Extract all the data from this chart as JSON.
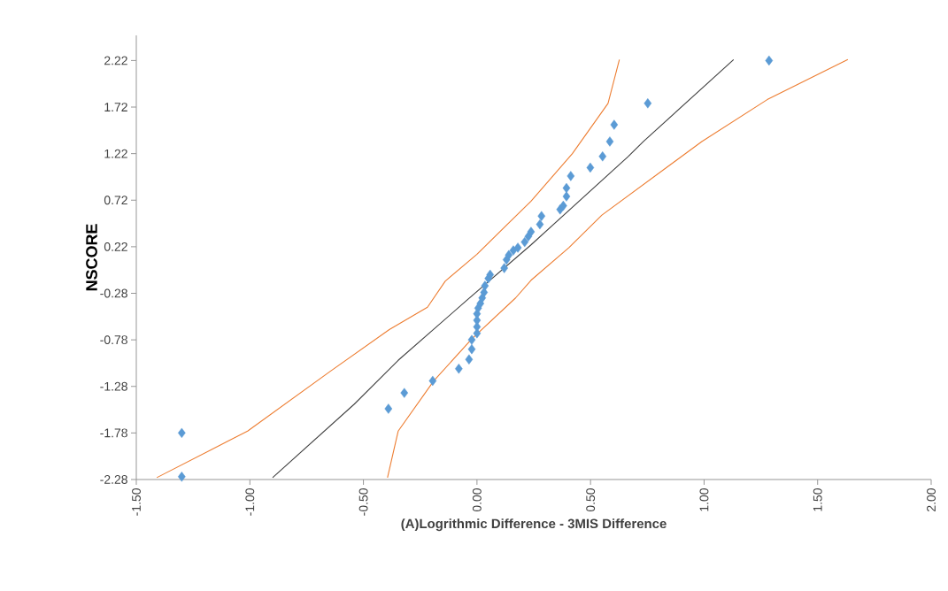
{
  "chart_data": {
    "type": "scatter",
    "xlabel": "(A)Logrithmic Difference - 3MIS Difference",
    "ylabel": "NSCORE",
    "xlim": [
      -1.5,
      2.0
    ],
    "ylim": [
      -2.28,
      2.49
    ],
    "xticks": [
      {
        "value": -1.5,
        "label": "-1.50"
      },
      {
        "value": -1.0,
        "label": "-1.00"
      },
      {
        "value": -0.5,
        "label": "-0.50"
      },
      {
        "value": 0,
        "label": "0.00"
      },
      {
        "value": 0.5,
        "label": "0.50"
      },
      {
        "value": 1.0,
        "label": "1.00"
      },
      {
        "value": 1.5,
        "label": "1.50"
      },
      {
        "value": 2.0,
        "label": "2.00"
      }
    ],
    "yticks": [
      -2.28,
      -1.78,
      -1.28,
      -0.78,
      -0.28,
      0.22,
      0.72,
      1.22,
      1.72,
      2.22
    ],
    "series": [
      {
        "marker": "diamond",
        "color": "#5b9bd5",
        "x": [
          -1.3,
          -1.3,
          -0.39,
          -0.32,
          -0.195,
          -0.08,
          -0.035,
          -0.023,
          -0.023,
          0.0,
          0.0,
          0.0,
          0.0,
          0.005,
          0.015,
          0.023,
          0.031,
          0.035,
          0.05,
          0.058,
          0.12,
          0.13,
          0.14,
          0.16,
          0.18,
          0.21,
          0.226,
          0.238,
          0.277,
          0.284,
          0.366,
          0.38,
          0.394,
          0.394,
          0.413,
          0.499,
          0.553,
          0.585,
          0.604,
          0.752,
          1.286
        ],
        "values": [
          -2.25,
          -1.78,
          -1.52,
          -1.35,
          -1.22,
          -1.09,
          -0.99,
          -0.88,
          -0.78,
          -0.71,
          -0.64,
          -0.57,
          -0.5,
          -0.44,
          -0.39,
          -0.33,
          -0.27,
          -0.2,
          -0.12,
          -0.08,
          -0.01,
          0.08,
          0.13,
          0.18,
          0.21,
          0.27,
          0.33,
          0.38,
          0.46,
          0.55,
          0.62,
          0.66,
          0.76,
          0.85,
          0.98,
          1.07,
          1.19,
          1.35,
          1.53,
          1.76,
          2.22
        ]
      },
      {
        "type": "line",
        "marker": "none",
        "color": "#404040",
        "x": [
          -0.9,
          -0.54,
          -0.347,
          -0.047,
          0.238,
          0.666,
          0.733,
          1.13
        ],
        "values": [
          -2.26,
          -1.47,
          -1.0,
          -0.36,
          0.24,
          1.19,
          1.35,
          2.23
        ]
      },
      {
        "type": "line",
        "marker": "none",
        "color": "#ed7d31",
        "x": [
          -1.41,
          -1.01,
          -0.647,
          -0.386,
          -0.218,
          -0.14,
          0.0,
          0.238,
          0.42,
          0.577,
          0.627
        ],
        "values": [
          -2.26,
          -1.76,
          -1.12,
          -0.67,
          -0.43,
          -0.15,
          0.14,
          0.71,
          1.22,
          1.76,
          2.23
        ]
      },
      {
        "type": "line",
        "marker": "none",
        "color": "#ed7d31",
        "x": [
          -0.394,
          -0.347,
          -0.19,
          -0.023,
          0.17,
          0.238,
          0.405,
          0.55,
          0.99,
          1.278,
          1.633
        ],
        "values": [
          -2.26,
          -1.76,
          -1.22,
          -0.77,
          -0.33,
          -0.14,
          0.21,
          0.56,
          1.35,
          1.8,
          2.23
        ]
      }
    ]
  }
}
